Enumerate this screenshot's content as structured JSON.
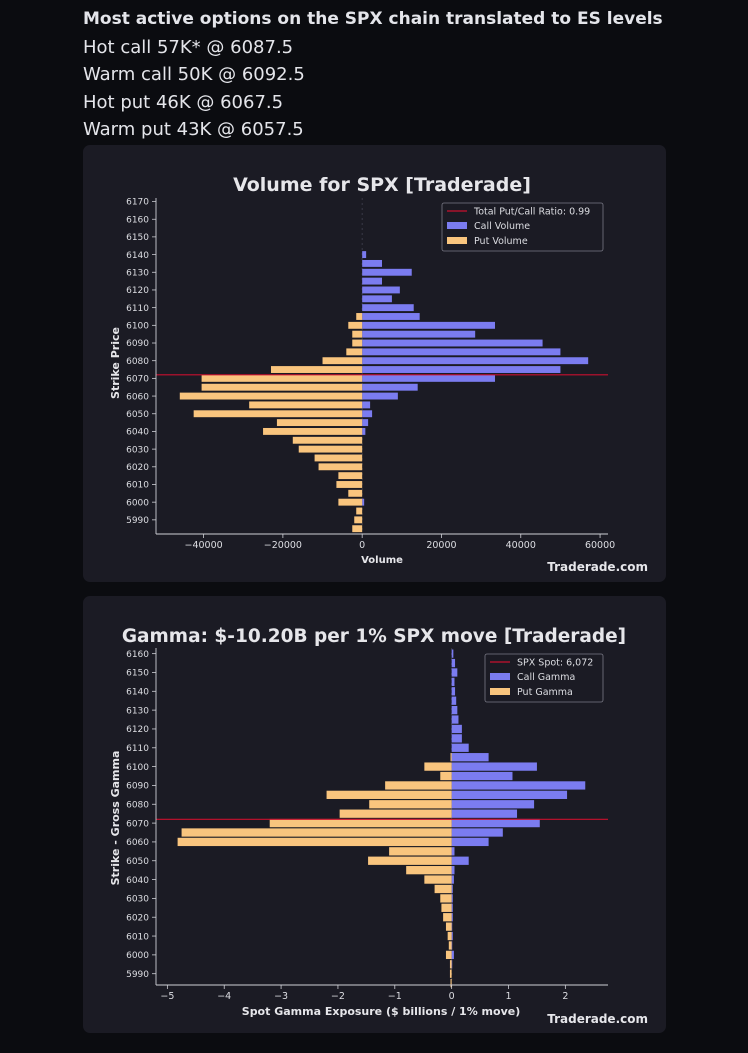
{
  "post": {
    "title": "Most active options on the SPX chain translated to ES levels",
    "lines": [
      "Hot call 57K* @ 6087.5",
      "Warm call 50K @ 6092.5",
      "Hot put 46K @ 6067.5",
      "Warm put 43K @ 6057.5"
    ]
  },
  "colors": {
    "background": "#0b0c10",
    "card": "#1b1b24",
    "call": "#7b7cf0",
    "put": "#f9c57e",
    "ref_line": "#c8102e"
  },
  "chart_data": [
    {
      "type": "bar",
      "orientation": "horizontal",
      "title": "Volume for SPX [Traderade]",
      "xlabel": "Volume",
      "ylabel": "Strike Price",
      "watermark": "Traderade.com",
      "xlim": [
        -52000,
        62000
      ],
      "ylim": [
        5982,
        6172
      ],
      "xticks": [
        -40000,
        -20000,
        0,
        20000,
        40000,
        60000
      ],
      "xtick_labels": [
        "−40000",
        "−20000",
        "0",
        "20000",
        "40000",
        "60000"
      ],
      "yticks": [
        5990,
        6000,
        6010,
        6020,
        6030,
        6040,
        6050,
        6060,
        6070,
        6080,
        6090,
        6100,
        6110,
        6120,
        6130,
        6140,
        6150,
        6160,
        6170
      ],
      "strikes": [
        5985,
        5990,
        5995,
        6000,
        6005,
        6010,
        6015,
        6020,
        6025,
        6030,
        6035,
        6040,
        6045,
        6050,
        6055,
        6060,
        6065,
        6070,
        6075,
        6080,
        6085,
        6090,
        6095,
        6100,
        6105,
        6110,
        6115,
        6120,
        6125,
        6130,
        6135,
        6140,
        6145,
        6150,
        6155,
        6160,
        6165
      ],
      "legend_position": "top-right",
      "legend": [
        "Total Put/Call Ratio: 0.99",
        "Call Volume",
        "Put Volume"
      ],
      "reference_line": {
        "label": "Total Put/Call Ratio: 0.99",
        "y": 6072
      },
      "series": [
        {
          "name": "Call Volume",
          "values": [
            0,
            0,
            0,
            500,
            0,
            0,
            0,
            0,
            0,
            0,
            0,
            800,
            1500,
            2500,
            2000,
            9000,
            14000,
            33500,
            50000,
            57000,
            50000,
            45500,
            28500,
            33500,
            14500,
            13000,
            7500,
            9500,
            5000,
            12500,
            5000,
            1000,
            0,
            0,
            0,
            0,
            0
          ]
        },
        {
          "name": "Put Volume",
          "values": [
            -2500,
            -2000,
            -1500,
            -6000,
            -3500,
            -6500,
            -6000,
            -11000,
            -12000,
            -16000,
            -17500,
            -25000,
            -21500,
            -42500,
            -28500,
            -46000,
            -40500,
            -40500,
            -23000,
            -10000,
            -4000,
            -2500,
            -2500,
            -3500,
            -1500,
            0,
            0,
            0,
            0,
            0,
            0,
            0,
            0,
            0,
            0,
            0,
            0
          ]
        }
      ]
    },
    {
      "type": "bar",
      "orientation": "horizontal",
      "title": "Gamma: $-10.20B per 1% SPX move [Traderade]",
      "xlabel": "Spot Gamma Exposure ($ billions / 1% move)",
      "ylabel": "Strike - Gross Gamma",
      "watermark": "Traderade.com",
      "xlim": [
        -5.2,
        2.75
      ],
      "ylim": [
        5984,
        6163
      ],
      "xticks": [
        -5,
        -4,
        -3,
        -2,
        -1,
        0,
        1,
        2
      ],
      "xtick_labels": [
        "−5",
        "−4",
        "−3",
        "−2",
        "−1",
        "0",
        "1",
        "2"
      ],
      "yticks": [
        5990,
        6000,
        6010,
        6020,
        6030,
        6040,
        6050,
        6060,
        6070,
        6080,
        6090,
        6100,
        6110,
        6120,
        6130,
        6140,
        6150,
        6160
      ],
      "strikes": [
        5985,
        5990,
        5995,
        6000,
        6005,
        6010,
        6015,
        6020,
        6025,
        6030,
        6035,
        6040,
        6045,
        6050,
        6055,
        6060,
        6065,
        6070,
        6075,
        6080,
        6085,
        6090,
        6095,
        6100,
        6105,
        6110,
        6115,
        6120,
        6125,
        6130,
        6135,
        6140,
        6145,
        6150,
        6155,
        6160
      ],
      "legend_position": "top-right",
      "legend": [
        "SPX Spot: 6,072",
        "Call Gamma",
        "Put Gamma"
      ],
      "reference_line": {
        "label": "SPX Spot: 6,072",
        "y": 6072
      },
      "series": [
        {
          "name": "Call Gamma",
          "values": [
            0,
            0,
            0.01,
            0.04,
            0.01,
            0.02,
            0.01,
            0.02,
            0.02,
            0.02,
            0.02,
            0.04,
            0.05,
            0.3,
            0.05,
            0.65,
            0.9,
            1.55,
            1.15,
            1.45,
            2.03,
            2.35,
            1.07,
            1.5,
            0.65,
            0.3,
            0.18,
            0.18,
            0.12,
            0.1,
            0.08,
            0.06,
            0.05,
            0.1,
            0.06,
            0.03
          ]
        },
        {
          "name": "Put Gamma",
          "values": [
            -0.02,
            -0.03,
            -0.03,
            -0.1,
            -0.05,
            -0.07,
            -0.1,
            -0.15,
            -0.18,
            -0.2,
            -0.3,
            -0.48,
            -0.8,
            -1.47,
            -1.1,
            -4.82,
            -4.75,
            -3.2,
            -1.97,
            -1.45,
            -2.2,
            -1.17,
            -0.2,
            -0.48,
            -0.02,
            0,
            0,
            0,
            0,
            0,
            0,
            0,
            0,
            0,
            0,
            0
          ]
        }
      ]
    }
  ]
}
